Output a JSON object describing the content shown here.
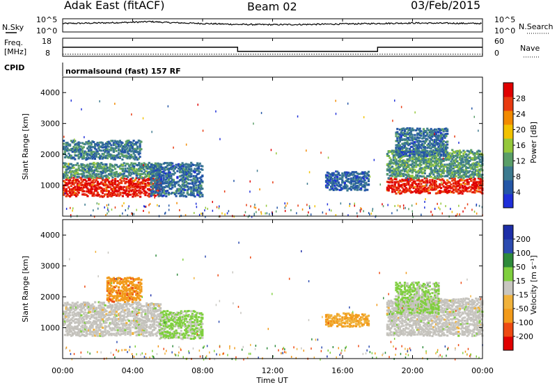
{
  "header": {
    "station": "Adak East (fitACF)",
    "beam": "Beam 02",
    "date": "03/Feb/2015"
  },
  "noise_panel": {
    "left_label": "N.Sky",
    "right_label": "N.Search",
    "left_ticks": [
      "10^5",
      "10^0"
    ],
    "right_ticks": [
      "10^5",
      "10^0"
    ]
  },
  "freq_panel": {
    "left_label_1": "Freq.",
    "left_label_2": "[MHz]",
    "right_label": "Nave",
    "left_ticks": [
      "18",
      "8"
    ],
    "right_ticks": [
      "60",
      "0"
    ],
    "cpid_label": "CPID",
    "cpid_text": "normalsound (fast) 157 RF"
  },
  "power_panel": {
    "ylabel": "Slant Range [km]",
    "yticks": [
      "1000",
      "2000",
      "3000",
      "4000"
    ],
    "colorbar_label": "Power [dB]",
    "colorbar_ticks": [
      "4",
      "8",
      "12",
      "16",
      "20",
      "24",
      "28"
    ]
  },
  "velocity_panel": {
    "ylabel": "Slant Range [km]",
    "yticks": [
      "1000",
      "2000",
      "3000",
      "4000"
    ],
    "colorbar_label": "Velocity [m s⁻¹]",
    "colorbar_ticks": [
      "-200",
      "-100",
      "-50",
      "-15",
      "15",
      "50",
      "100",
      "200"
    ]
  },
  "xaxis": {
    "label": "Time UT",
    "ticks": [
      "00:00",
      "04:00",
      "08:00",
      "12:00",
      "16:00",
      "20:00",
      "00:00"
    ]
  },
  "colors": {
    "power_scale": [
      "#1f2fd9",
      "#2456a6",
      "#3c7a8f",
      "#5a9e68",
      "#95c83b",
      "#f2c200",
      "#f28a00",
      "#e83a10",
      "#e00000"
    ],
    "velocity_scale": [
      "#e00000",
      "#ee4a12",
      "#f29a1a",
      "#f0b23c",
      "#c8c6c0",
      "#7fcf3e",
      "#2e8a3a",
      "#2c4bb0",
      "#1d2ea8"
    ],
    "ground_scatter": "#c3c1bb"
  },
  "chart_data": [
    {
      "type": "line",
      "title": "N.Sky / N.Search",
      "x_range_hours": [
        0,
        24
      ],
      "series": [
        {
          "name": "N.Sky",
          "x": [
            0,
            2,
            4,
            5,
            6,
            8,
            10,
            12,
            14,
            16,
            18,
            20,
            22,
            24
          ],
          "y": [
            3,
            3.2,
            3.5,
            3.8,
            3.4,
            3,
            2.6,
            2.5,
            2.6,
            2.8,
            3,
            3.2,
            3.1,
            3
          ]
        }
      ]
    },
    {
      "type": "line",
      "title": "Freq. / Nave",
      "x_range_hours": [
        0,
        24
      ],
      "series": [
        {
          "name": "Freq.",
          "x": [
            0,
            10,
            10,
            18,
            18,
            24
          ],
          "y": [
            13,
            13,
            10.5,
            10.5,
            13,
            13
          ]
        },
        {
          "name": "Nave",
          "x": [
            0,
            24
          ],
          "y": [
            20,
            20
          ]
        }
      ]
    },
    {
      "type": "heatmap",
      "title": "Power [dB]",
      "x_range_hours": [
        0,
        24
      ],
      "ylim": [
        0,
        4500
      ],
      "zlim": [
        0,
        30
      ],
      "regions": [
        {
          "t0": 0,
          "t1": 5.6,
          "r_low": 700,
          "r_high": 1300,
          "value": 27
        },
        {
          "t0": 0,
          "t1": 5.6,
          "r_low": 1300,
          "r_high": 1800,
          "value": 10
        },
        {
          "t0": 0,
          "t1": 4.5,
          "r_low": 1900,
          "r_high": 2500,
          "value": 8
        },
        {
          "t0": 5,
          "t1": 8,
          "r_low": 700,
          "r_high": 1800,
          "value": 7
        },
        {
          "t0": 15,
          "t1": 17.5,
          "r_low": 900,
          "r_high": 1500,
          "value": 6
        },
        {
          "t0": 18.5,
          "t1": 24,
          "r_low": 800,
          "r_high": 1300,
          "value": 27
        },
        {
          "t0": 18.5,
          "t1": 24,
          "r_low": 1300,
          "r_high": 2200,
          "value": 11
        },
        {
          "t0": 19,
          "t1": 22,
          "r_low": 2000,
          "r_high": 2900,
          "value": 7
        }
      ]
    },
    {
      "type": "heatmap",
      "title": "Velocity [m s⁻¹]",
      "x_range_hours": [
        0,
        24
      ],
      "ylim": [
        0,
        4500
      ],
      "zlim": [
        -250,
        250
      ],
      "regions": [
        {
          "t0": 0,
          "t1": 5.6,
          "r_low": 800,
          "r_high": 1900,
          "value": 0
        },
        {
          "t0": 2.5,
          "t1": 4.5,
          "r_low": 1900,
          "r_high": 2700,
          "value": -120
        },
        {
          "t0": 5.5,
          "t1": 8,
          "r_low": 700,
          "r_high": 1600,
          "value": 40
        },
        {
          "t0": 15,
          "t1": 17.5,
          "r_low": 1100,
          "r_high": 1500,
          "value": -80
        },
        {
          "t0": 18.5,
          "t1": 24,
          "r_low": 800,
          "r_high": 2000,
          "value": 0
        },
        {
          "t0": 19,
          "t1": 21.5,
          "r_low": 1500,
          "r_high": 2500,
          "value": 35
        }
      ]
    }
  ]
}
